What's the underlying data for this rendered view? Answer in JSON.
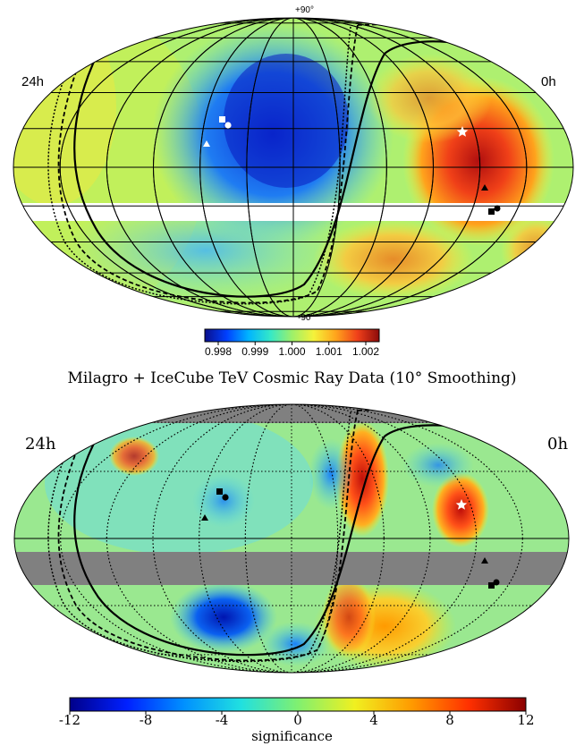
{
  "top_panel": {
    "label_left": "24h",
    "label_right": "0h",
    "pole_top": "+90°",
    "pole_bottom": "-90°",
    "colorbar": {
      "ticks": [
        "0.998",
        "0.999",
        "1.000",
        "1.001",
        "1.002"
      ],
      "colors": [
        "#0a0f8c",
        "#0040ff",
        "#00b4ff",
        "#34e8c8",
        "#9df06a",
        "#f5f23a",
        "#ffa51c",
        "#f0401a",
        "#8c0b0b"
      ]
    }
  },
  "title": "Milagro + IceCube TeV Cosmic Ray Data (10° Smoothing)",
  "bottom_panel": {
    "label_left": "24h",
    "label_right": "0h",
    "colorbar": {
      "ticks": [
        "-12",
        "-8",
        "-4",
        "0",
        "4",
        "8",
        "12"
      ],
      "label": "significance",
      "colors": [
        "#00008a",
        "#0020ff",
        "#0090ff",
        "#20e0e0",
        "#80f070",
        "#f0f020",
        "#ff9a00",
        "#ff3000",
        "#8a0000"
      ]
    }
  },
  "markers": {
    "white_star_color": "#ffffff",
    "black_marker_color": "#000000"
  }
}
